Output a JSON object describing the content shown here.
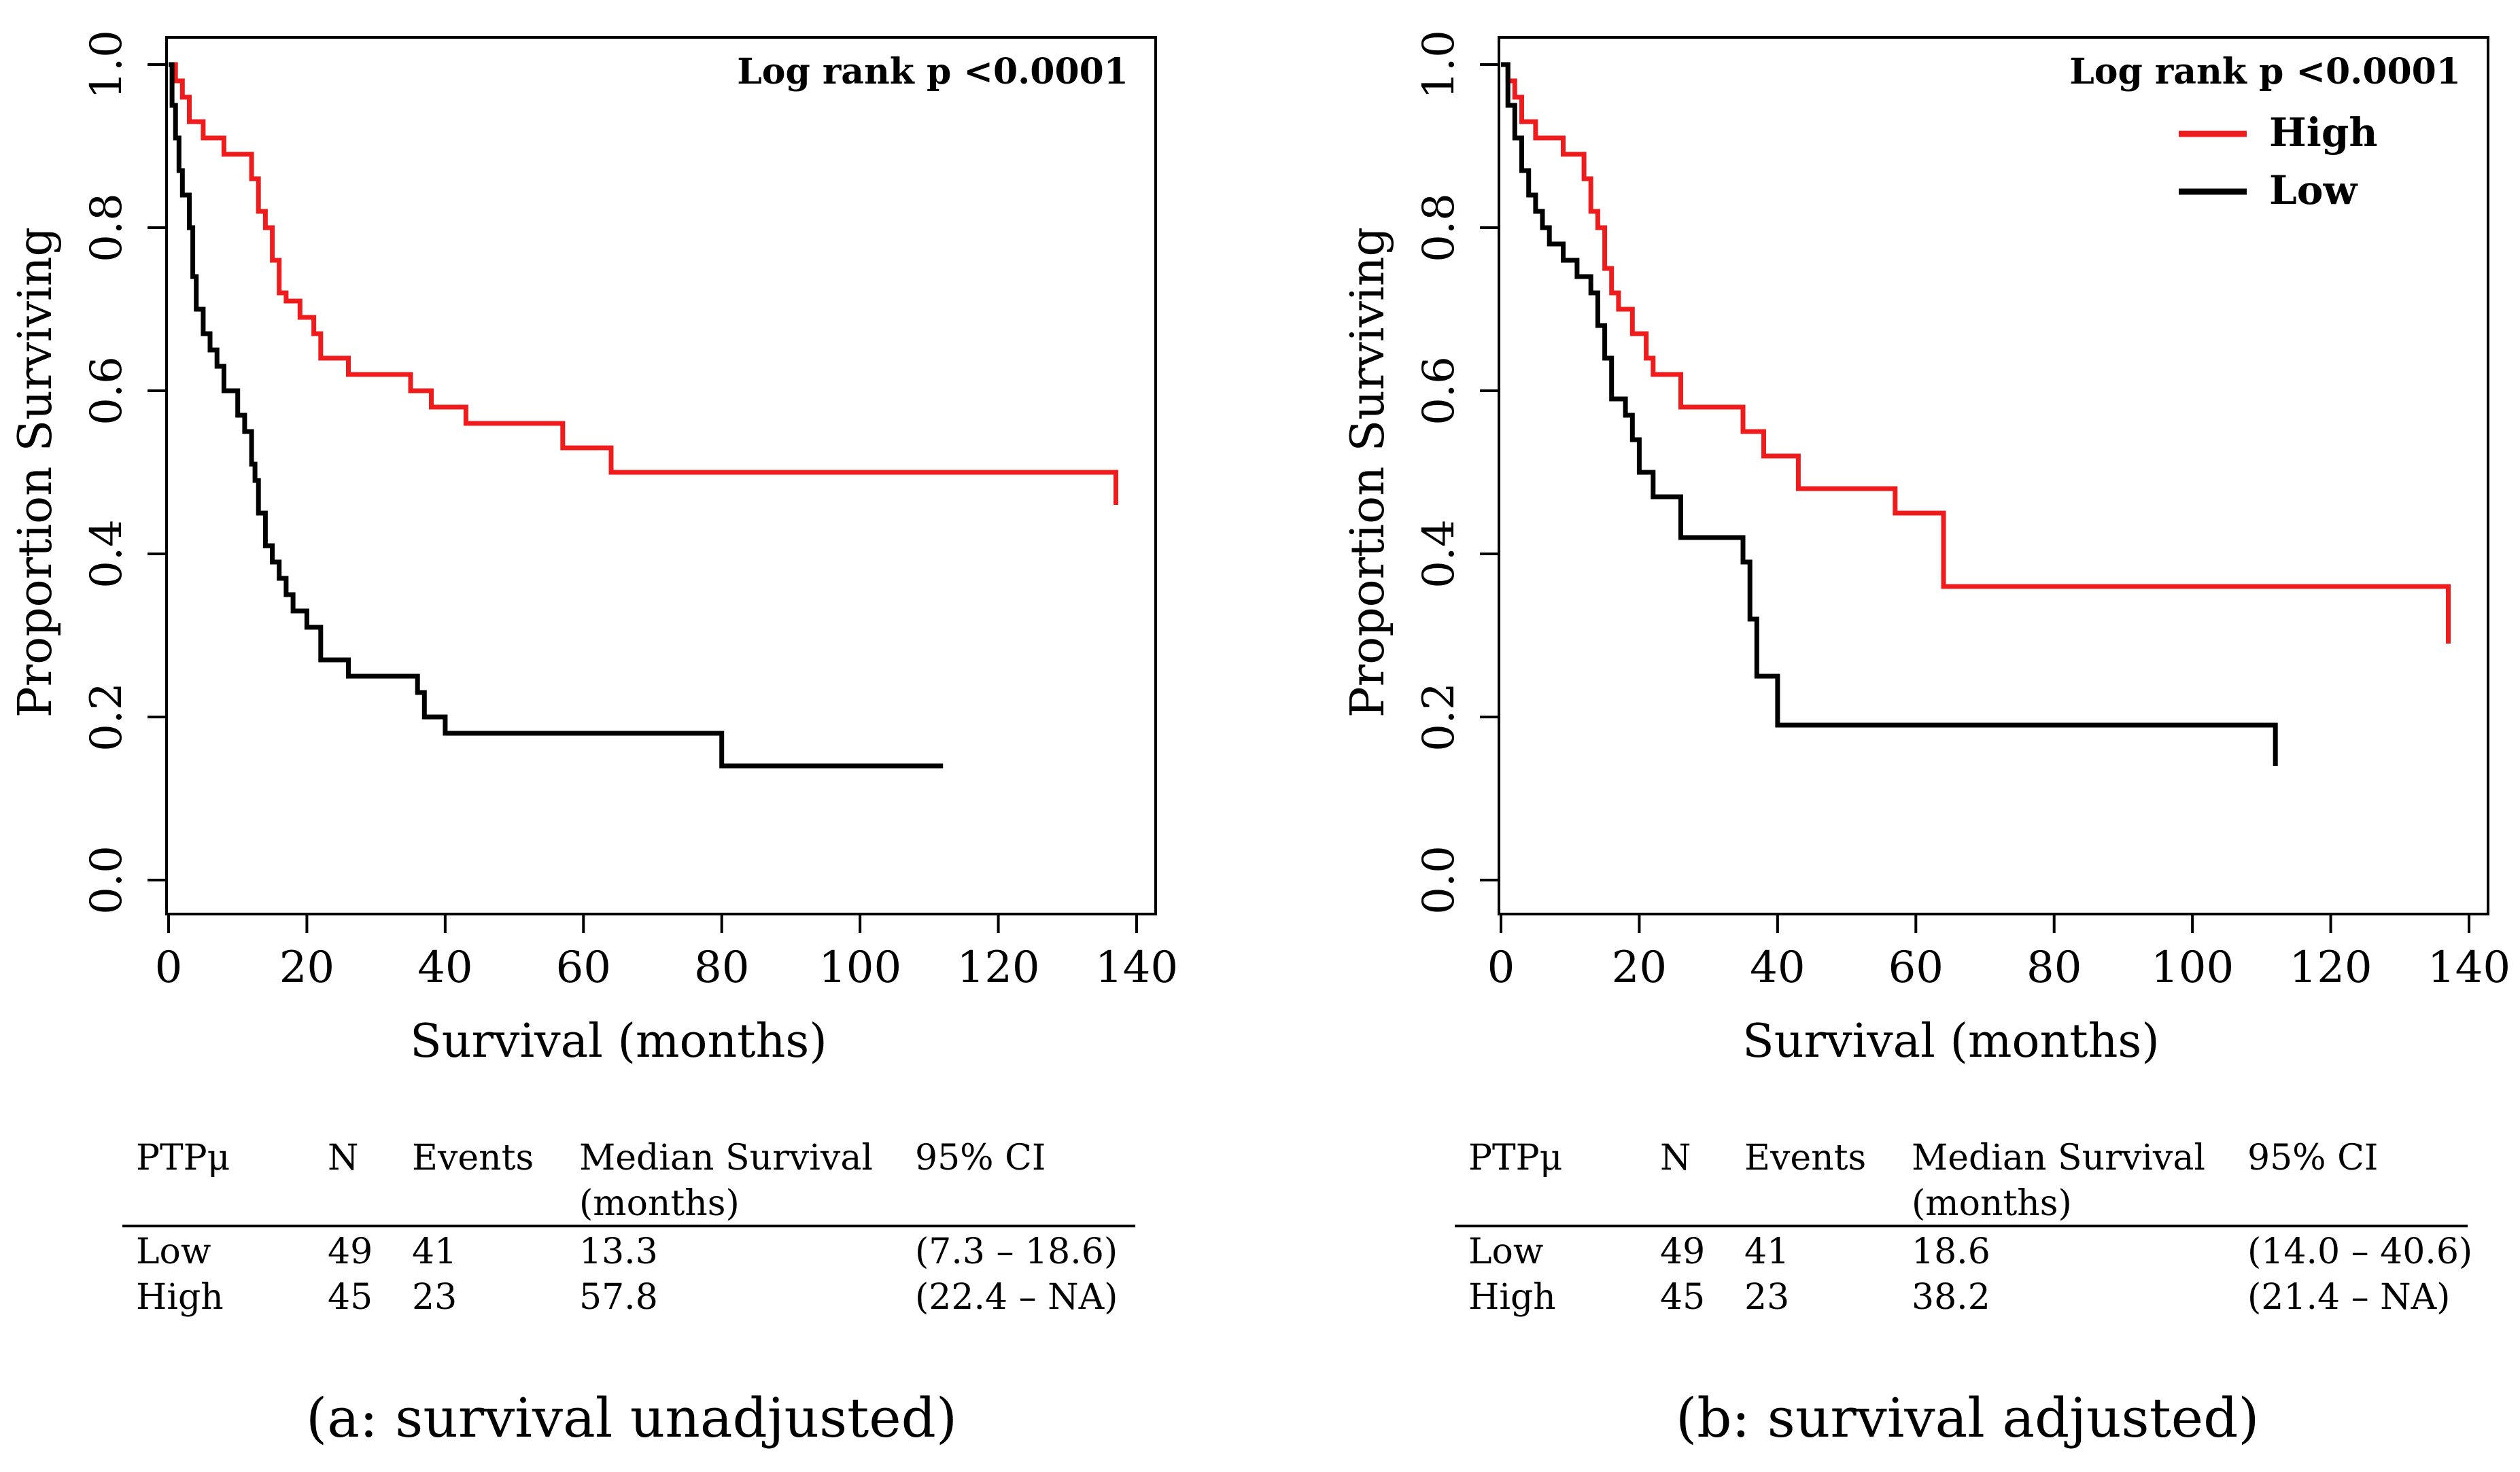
{
  "chart_data": [
    {
      "type": "line",
      "subtype": "kaplan-meier step",
      "title": "",
      "xlabel": "Survival (months)",
      "ylabel": "Proportion Surviving",
      "xlim": [
        0,
        140
      ],
      "ylim": [
        0,
        1
      ],
      "xticks": [
        "0",
        "20",
        "40",
        "60",
        "80",
        "100",
        "120",
        "140"
      ],
      "yticks": [
        "0.0",
        "0.2",
        "0.4",
        "0.6",
        "0.8",
        "1.0"
      ],
      "annotation": "Log rank p <0.0001",
      "legend": null,
      "series": [
        {
          "name": "High",
          "color": "#ee1c1c",
          "x": [
            0,
            1,
            2,
            3,
            4,
            5,
            7,
            8,
            12,
            13,
            14,
            15,
            16,
            17,
            19,
            21,
            22,
            26,
            35,
            38,
            43,
            57,
            64,
            137
          ],
          "y": [
            1.0,
            0.98,
            0.96,
            0.93,
            0.93,
            0.91,
            0.91,
            0.89,
            0.86,
            0.82,
            0.8,
            0.76,
            0.72,
            0.71,
            0.69,
            0.67,
            0.64,
            0.62,
            0.6,
            0.58,
            0.56,
            0.53,
            0.5,
            0.46
          ]
        },
        {
          "name": "Low",
          "color": "#000000",
          "x": [
            0,
            0.5,
            1,
            1.5,
            2,
            3,
            3.5,
            4,
            5,
            6,
            7,
            8,
            10,
            11,
            12,
            12.5,
            13,
            14,
            15,
            16,
            17,
            18,
            20,
            22,
            26,
            36,
            37,
            40,
            80,
            112
          ],
          "y": [
            1.0,
            0.95,
            0.91,
            0.87,
            0.84,
            0.8,
            0.74,
            0.7,
            0.67,
            0.65,
            0.63,
            0.6,
            0.57,
            0.55,
            0.51,
            0.49,
            0.45,
            0.41,
            0.39,
            0.37,
            0.35,
            0.33,
            0.31,
            0.27,
            0.25,
            0.23,
            0.2,
            0.18,
            0.14,
            0.14
          ]
        }
      ]
    },
    {
      "type": "line",
      "subtype": "kaplan-meier step",
      "title": "",
      "xlabel": "Survival (months)",
      "ylabel": "Proportion Surviving",
      "xlim": [
        0,
        140
      ],
      "ylim": [
        0,
        1
      ],
      "xticks": [
        "0",
        "20",
        "40",
        "60",
        "80",
        "100",
        "120",
        "140"
      ],
      "yticks": [
        "0.0",
        "0.2",
        "0.4",
        "0.6",
        "0.8",
        "1.0"
      ],
      "annotation": "Log rank p <0.0001",
      "legend": {
        "placement": "top-right",
        "entries": [
          "High",
          "Low"
        ]
      },
      "series": [
        {
          "name": "High",
          "color": "#ee1c1c",
          "x": [
            0,
            1,
            2,
            3,
            4,
            5,
            7,
            9,
            12,
            13,
            14,
            15,
            16,
            17,
            19,
            21,
            22,
            26,
            35,
            38,
            43,
            57,
            64,
            137
          ],
          "y": [
            1.0,
            0.98,
            0.96,
            0.93,
            0.93,
            0.91,
            0.91,
            0.89,
            0.86,
            0.82,
            0.8,
            0.75,
            0.72,
            0.7,
            0.67,
            0.64,
            0.62,
            0.58,
            0.55,
            0.52,
            0.48,
            0.45,
            0.36,
            0.29
          ]
        },
        {
          "name": "Low",
          "color": "#000000",
          "x": [
            0,
            1,
            2,
            3,
            4,
            5,
            6,
            7,
            9,
            11,
            13,
            14,
            15,
            16,
            18,
            19,
            20,
            22,
            26,
            35,
            36,
            37,
            40,
            80,
            112
          ],
          "y": [
            1.0,
            0.95,
            0.91,
            0.87,
            0.84,
            0.82,
            0.8,
            0.78,
            0.76,
            0.74,
            0.72,
            0.68,
            0.64,
            0.59,
            0.57,
            0.54,
            0.5,
            0.47,
            0.42,
            0.39,
            0.32,
            0.25,
            0.19,
            0.19,
            0.14
          ]
        }
      ]
    }
  ],
  "tables": [
    {
      "headers": [
        "PTPμ",
        "N",
        "Events",
        "Median Survival",
        "95% CI"
      ],
      "header_sub": "(months)",
      "rows": [
        [
          "Low",
          "49",
          "41",
          "13.3",
          "(7.3 – 18.6)"
        ],
        [
          "High",
          "45",
          "23",
          "57.8",
          "(22.4 – NA)"
        ]
      ]
    },
    {
      "headers": [
        "PTPμ",
        "N",
        "Events",
        "Median Survival",
        "95% CI"
      ],
      "header_sub": "(months)",
      "rows": [
        [
          "Low",
          "49",
          "41",
          "18.6",
          "(14.0 – 40.6)"
        ],
        [
          "High",
          "45",
          "23",
          "38.2",
          "(21.4 – NA)"
        ]
      ]
    }
  ],
  "captions": [
    "(a: survival unadjusted)",
    "(b: survival adjusted)"
  ]
}
